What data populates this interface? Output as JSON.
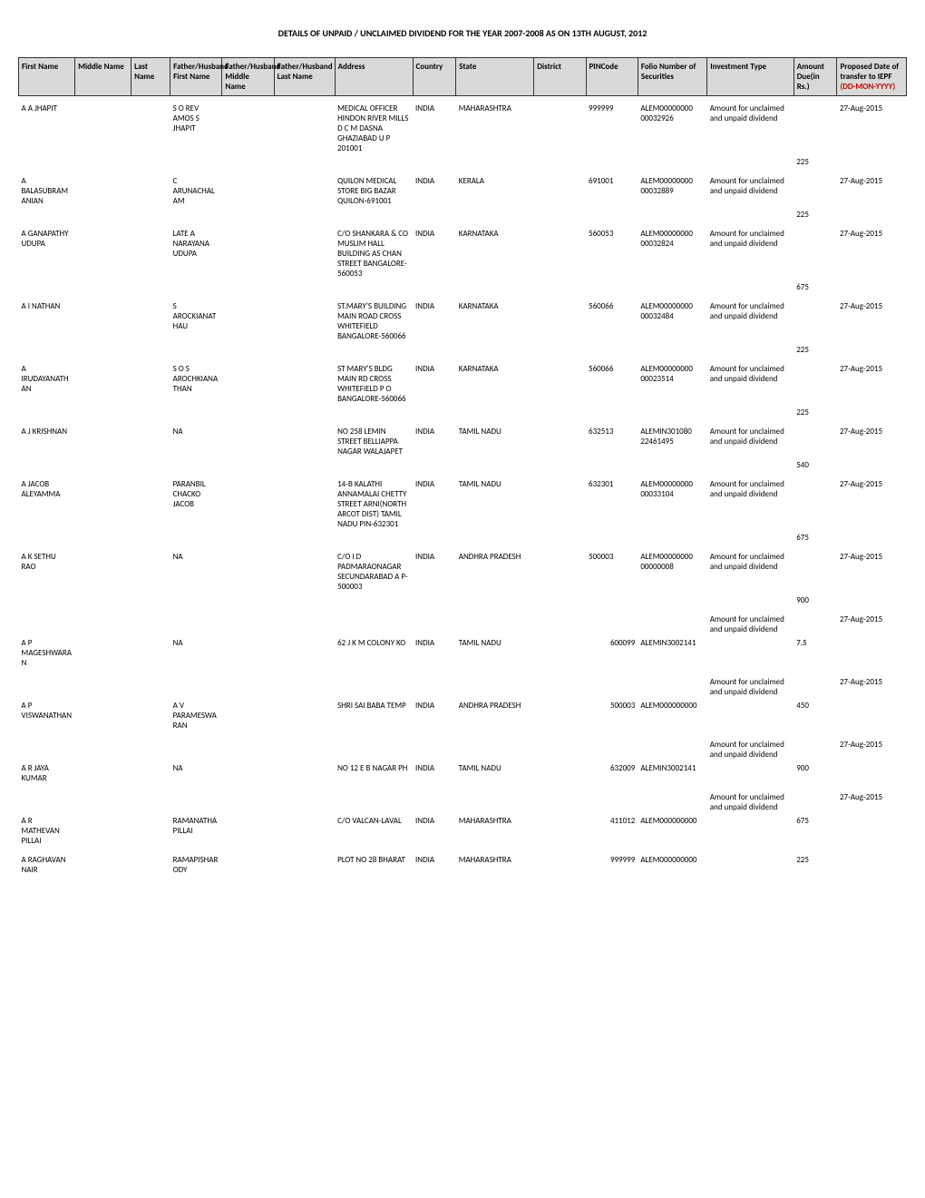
{
  "title": "DETAILS OF UNPAID / UNCLAIMED DIVIDEND FOR THE YEAR 2007-2008 AS ON 13TH AUGUST, 2012",
  "headers": {
    "firstName": "First Name",
    "middleName": "Middle Name",
    "lastName": "Last Name",
    "fatherFirst": "Father/Husband First Name",
    "fatherMiddle": "Father/Husband Middle Name",
    "fatherLast": "Father/Husband Last Name",
    "address": "Address",
    "country": "Country",
    "state": "State",
    "district": "District",
    "pincode": "PINCode",
    "folio": "Folio Number of Securities",
    "investmentType": "Investment Type",
    "amount": "Amount Due(in Rs.)",
    "proposedDate": "Proposed Date of transfer to IEPF",
    "dateFormat": "(DD-MON-YYYY)"
  },
  "rows": [
    {
      "firstName": "A A JHAPIT",
      "fatherFirst": "S O REV AMOS S JHAPIT",
      "address": "MEDICAL OFFICER HINDON RIVER MILLS D C M DASNA GHAZIABAD U P 201001",
      "country": "INDIA",
      "state": "MAHARASHTRA",
      "pincode": "999999",
      "folio": "ALEM0000000000032926",
      "investmentType": "Amount for unclaimed and unpaid dividend",
      "amount": "225",
      "date": "27-Aug-2015"
    },
    {
      "firstName": "A BALASUBRAMANIAN",
      "fatherFirst": "C ARUNACHALAM",
      "address": "QUILON MEDICAL STORE BIG BAZAR QUILON-691001",
      "country": "INDIA",
      "state": "KERALA",
      "pincode": "691001",
      "folio": "ALEM0000000000032889",
      "investmentType": "Amount for unclaimed and unpaid dividend",
      "amount": "225",
      "date": "27-Aug-2015"
    },
    {
      "firstName": "A GANAPATHY UDUPA",
      "fatherFirst": "LATE A NARAYANA UDUPA",
      "address": "C/O SHANKARA & CO MUSLIM HALL BUILDING AS CHAN STREET BANGALORE-560053",
      "country": "INDIA",
      "state": "KARNATAKA",
      "pincode": "560053",
      "folio": "ALEM0000000000032824",
      "investmentType": "Amount for unclaimed and unpaid dividend",
      "amount": "675",
      "date": "27-Aug-2015"
    },
    {
      "firstName": "A I NATHAN",
      "fatherFirst": "S AROCKIANATHAU",
      "address": "ST.MARY'S BUILDING MAIN ROAD CROSS WHITEFIELD BANGALORE-560066",
      "country": "INDIA",
      "state": "KARNATAKA",
      "pincode": "560066",
      "folio": "ALEM0000000000032484",
      "investmentType": "Amount for unclaimed and unpaid dividend",
      "amount": "225",
      "date": "27-Aug-2015"
    },
    {
      "firstName": "A IRUDAYANATHAN",
      "fatherFirst": "S O S AROCHKIANATHAN",
      "address": "ST MARY'S BLDG MAIN RD CROSS WHITEFIELD P O BANGALORE-560066",
      "country": "INDIA",
      "state": "KARNATAKA",
      "pincode": "560066",
      "folio": "ALEM0000000000023514",
      "investmentType": "Amount for unclaimed and unpaid dividend",
      "amount": "225",
      "date": "27-Aug-2015"
    },
    {
      "firstName": "A J KRISHNAN",
      "fatherFirst": "NA",
      "address": "NO 258 LEMIN STREET BELLIAPPA NAGAR WALAJAPET",
      "country": "INDIA",
      "state": "TAMIL NADU",
      "pincode": "632513",
      "folio": "ALEMIN30108022461495",
      "investmentType": "Amount for unclaimed and unpaid dividend",
      "amount": "540",
      "date": "27-Aug-2015"
    },
    {
      "firstName": "A JACOB ALEYAMMA",
      "fatherFirst": "PARANBIL CHACKO JACOB",
      "address": "14-B KALATHI ANNAMALAI CHETTY STREET ARNI(NORTH ARCOT DIST) TAMIL NADU PIN-632301",
      "country": "INDIA",
      "state": "TAMIL NADU",
      "pincode": "632301",
      "folio": "ALEM0000000000033104",
      "investmentType": "Amount for unclaimed and unpaid dividend",
      "amount": "675",
      "date": "27-Aug-2015"
    },
    {
      "firstName": "A K SETHU RAO",
      "fatherFirst": "NA",
      "address": "C/O I D PADMARAONAGAR SECUNDARABAD A P-500003",
      "country": "INDIA",
      "state": "ANDHRA PRADESH",
      "pincode": "500003",
      "folio": "ALEM0000000000000008",
      "investmentType": "Amount for unclaimed and unpaid dividend",
      "amount": "900",
      "date": "27-Aug-2015"
    },
    {
      "firstName": "A P MAGESHWARAN",
      "fatherFirst": "NA",
      "address": "62 J K M COLONY KO",
      "country": "INDIA",
      "state": "TAMIL NADU",
      "pincode": "600099",
      "folio": "ALEMIN3002141",
      "investmentType": "Amount for unclaimed and unpaid dividend",
      "amount": "7.5",
      "date": "27-Aug-2015"
    },
    {
      "firstName": "A P VISWANATHAN",
      "fatherFirst": "A V PARAMESWARAN",
      "address": "SHRI SAI BABA TEMP",
      "country": "INDIA",
      "state": "ANDHRA PRADESH",
      "pincode": "500003",
      "folio": "ALEM000000000",
      "investmentType": "Amount for unclaimed and unpaid dividend",
      "amount": "450",
      "date": "27-Aug-2015"
    },
    {
      "firstName": "A R JAYA KUMAR",
      "fatherFirst": "NA",
      "address": "NO 12 E B NAGAR PH",
      "country": "INDIA",
      "state": "TAMIL NADU",
      "pincode": "632009",
      "folio": "ALEMIN3002141",
      "investmentType": "Amount for unclaimed and unpaid dividend",
      "amount": "900",
      "date": "27-Aug-2015"
    },
    {
      "firstName": "A R MATHEVAN PILLAI",
      "fatherFirst": "RAMANATHA PILLAI",
      "address": "C/O VALCAN-LAVAL",
      "country": "INDIA",
      "state": "MAHARASHTRA",
      "pincode": "411012",
      "folio": "ALEM000000000",
      "investmentType": "Amount for unclaimed and unpaid dividend",
      "amount": "675",
      "date": "27-Aug-2015"
    },
    {
      "firstName": "A RAGHAVAN NAIR",
      "fatherFirst": "RAMAPISHARODY",
      "address": "PLOT NO 28 BHARAT",
      "country": "INDIA",
      "state": "MAHARASHTRA",
      "pincode": "999999",
      "folio": "ALEM000000000",
      "investmentType": "",
      "amount": "225",
      "date": ""
    }
  ]
}
